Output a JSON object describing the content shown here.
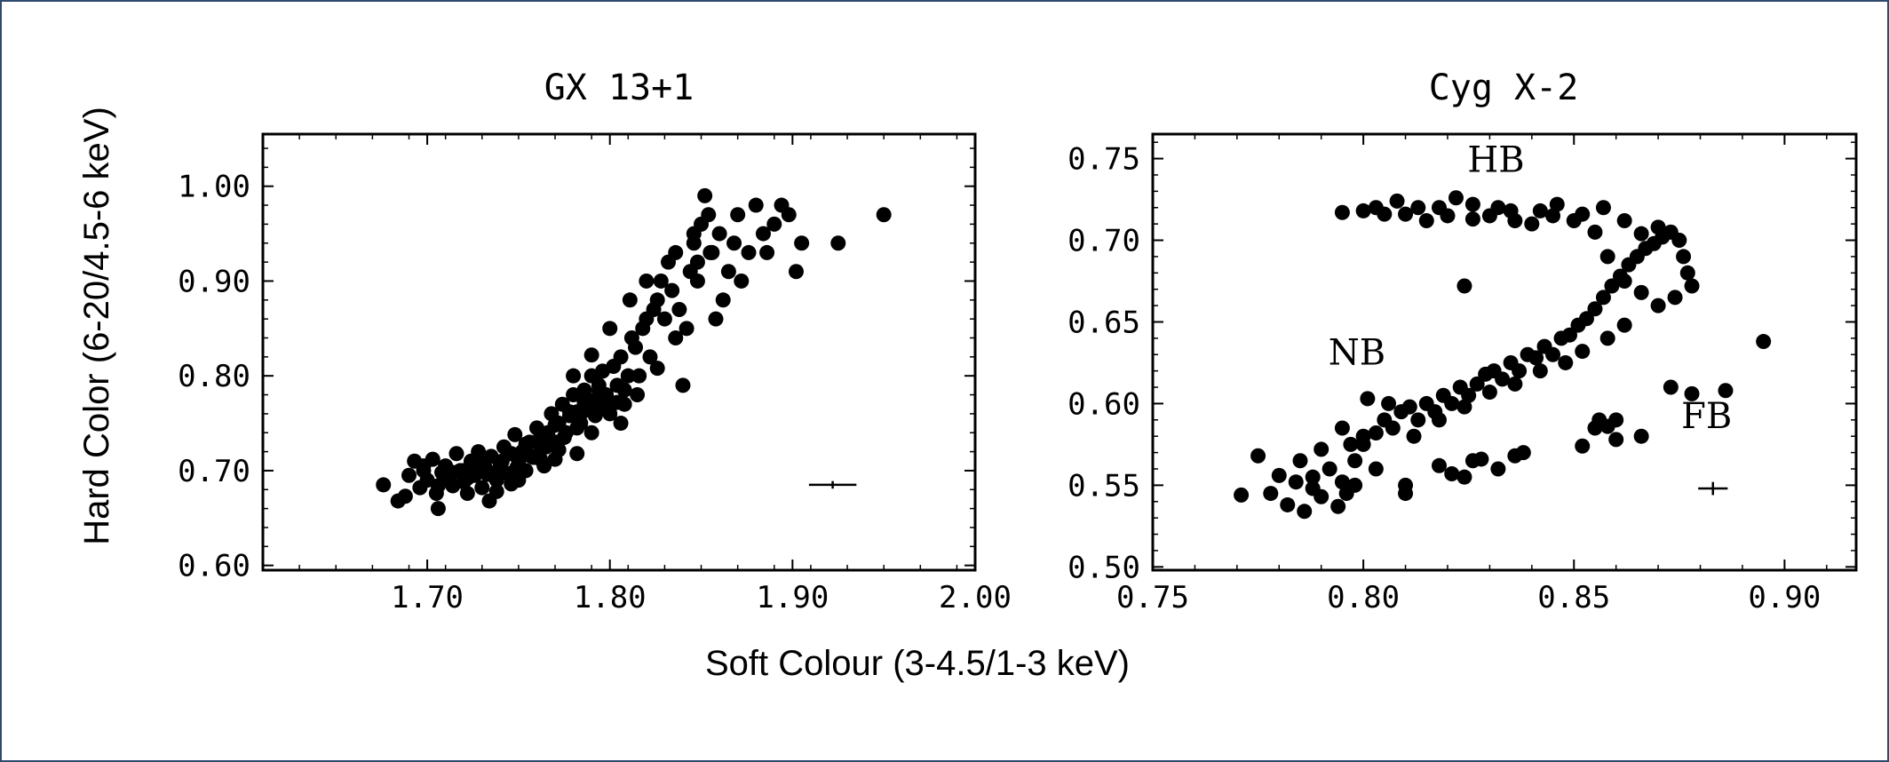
{
  "shared": {
    "xlabel": "Soft Colour (3-4.5/1-3 keV)",
    "ylabel": "Hard Color (6-20/4.5-6 keV)"
  },
  "chart_data": [
    {
      "type": "scatter",
      "title": "GX 13+1",
      "xlim": [
        1.61,
        2.0
      ],
      "ylim": [
        0.595,
        1.055
      ],
      "xticks": [
        1.7,
        1.8,
        1.9,
        2.0
      ],
      "xtick_labels": [
        "1.70",
        "1.80",
        "1.90",
        "2.00"
      ],
      "yticks": [
        0.6,
        0.7,
        0.8,
        0.9,
        1.0
      ],
      "ytick_labels": [
        "0.60",
        "0.70",
        "0.80",
        "0.90",
        "1.00"
      ],
      "error_bar": {
        "x": 1.922,
        "y": 0.685,
        "xerr": 0.013,
        "yerr": 0.004
      },
      "annotations": [],
      "points": [
        [
          1.676,
          0.685
        ],
        [
          1.684,
          0.668
        ],
        [
          1.688,
          0.673
        ],
        [
          1.69,
          0.695
        ],
        [
          1.693,
          0.71
        ],
        [
          1.696,
          0.682
        ],
        [
          1.698,
          0.7
        ],
        [
          1.7,
          0.69
        ],
        [
          1.703,
          0.712
        ],
        [
          1.705,
          0.676
        ],
        [
          1.706,
          0.66
        ],
        [
          1.708,
          0.698
        ],
        [
          1.71,
          0.705
        ],
        [
          1.712,
          0.692
        ],
        [
          1.714,
          0.684
        ],
        [
          1.716,
          0.718
        ],
        [
          1.718,
          0.7
        ],
        [
          1.72,
          0.688
        ],
        [
          1.722,
          0.676
        ],
        [
          1.724,
          0.71
        ],
        [
          1.726,
          0.695
        ],
        [
          1.728,
          0.72
        ],
        [
          1.73,
          0.682
        ],
        [
          1.732,
          0.702
        ],
        [
          1.734,
          0.668
        ],
        [
          1.735,
          0.715
        ],
        [
          1.738,
          0.69
        ],
        [
          1.74,
          0.706
        ],
        [
          1.742,
          0.725
        ],
        [
          1.744,
          0.697
        ],
        [
          1.746,
          0.686
        ],
        [
          1.748,
          0.738
        ],
        [
          1.75,
          0.71
        ],
        [
          1.752,
          0.72
        ],
        [
          1.754,
          0.7
        ],
        [
          1.756,
          0.73
        ],
        [
          1.758,
          0.714
        ],
        [
          1.76,
          0.745
        ],
        [
          1.762,
          0.726
        ],
        [
          1.764,
          0.705
        ],
        [
          1.766,
          0.74
        ],
        [
          1.768,
          0.76
        ],
        [
          1.77,
          0.73
        ],
        [
          1.772,
          0.75
        ],
        [
          1.774,
          0.77
        ],
        [
          1.776,
          0.74
        ],
        [
          1.778,
          0.758
        ],
        [
          1.78,
          0.78
        ],
        [
          1.782,
          0.762
        ],
        [
          1.784,
          0.75
        ],
        [
          1.786,
          0.785
        ],
        [
          1.788,
          0.77
        ],
        [
          1.79,
          0.8
        ],
        [
          1.792,
          0.775
        ],
        [
          1.794,
          0.79
        ],
        [
          1.796,
          0.805
        ],
        [
          1.798,
          0.78
        ],
        [
          1.8,
          0.76
        ],
        [
          1.802,
          0.81
        ],
        [
          1.804,
          0.79
        ],
        [
          1.806,
          0.82
        ],
        [
          1.808,
          0.77
        ],
        [
          1.81,
          0.8
        ],
        [
          1.812,
          0.84
        ],
        [
          1.814,
          0.83
        ],
        [
          1.816,
          0.8
        ],
        [
          1.818,
          0.85
        ],
        [
          1.82,
          0.86
        ],
        [
          1.822,
          0.82
        ],
        [
          1.824,
          0.87
        ],
        [
          1.826,
          0.88
        ],
        [
          1.828,
          0.9
        ],
        [
          1.83,
          0.86
        ],
        [
          1.832,
          0.92
        ],
        [
          1.834,
          0.89
        ],
        [
          1.836,
          0.93
        ],
        [
          1.838,
          0.87
        ],
        [
          1.84,
          0.79
        ],
        [
          1.842,
          0.85
        ],
        [
          1.844,
          0.91
        ],
        [
          1.846,
          0.94
        ],
        [
          1.848,
          0.9
        ],
        [
          1.85,
          0.96
        ],
        [
          1.852,
          0.99
        ],
        [
          1.854,
          0.97
        ],
        [
          1.856,
          0.93
        ],
        [
          1.858,
          0.86
        ],
        [
          1.86,
          0.95
        ],
        [
          1.862,
          0.88
        ],
        [
          1.865,
          0.91
        ],
        [
          1.868,
          0.94
        ],
        [
          1.87,
          0.97
        ],
        [
          1.872,
          0.9
        ],
        [
          1.876,
          0.93
        ],
        [
          1.88,
          0.98
        ],
        [
          1.884,
          0.95
        ],
        [
          1.886,
          0.93
        ],
        [
          1.89,
          0.96
        ],
        [
          1.894,
          0.98
        ],
        [
          1.898,
          0.97
        ],
        [
          1.902,
          0.91
        ],
        [
          1.905,
          0.94
        ],
        [
          1.925,
          0.94
        ],
        [
          1.95,
          0.97
        ],
        [
          1.698,
          0.705
        ],
        [
          1.706,
          0.684
        ],
        [
          1.714,
          0.698
        ],
        [
          1.722,
          0.692
        ],
        [
          1.73,
          0.712
        ],
        [
          1.738,
          0.698
        ],
        [
          1.746,
          0.718
        ],
        [
          1.754,
          0.728
        ],
        [
          1.762,
          0.735
        ],
        [
          1.77,
          0.748
        ],
        [
          1.778,
          0.762
        ],
        [
          1.786,
          0.772
        ],
        [
          1.794,
          0.785
        ],
        [
          1.762,
          0.712
        ],
        [
          1.772,
          0.722
        ],
        [
          1.782,
          0.745
        ],
        [
          1.792,
          0.758
        ],
        [
          1.8,
          0.772
        ],
        [
          1.808,
          0.785
        ],
        [
          1.72,
          0.7
        ],
        [
          1.727,
          0.706
        ],
        [
          1.733,
          0.696
        ],
        [
          1.741,
          0.71
        ],
        [
          1.749,
          0.703
        ],
        [
          1.757,
          0.715
        ],
        [
          1.765,
          0.725
        ],
        [
          1.775,
          0.735
        ],
        [
          1.785,
          0.762
        ],
        [
          1.795,
          0.768
        ],
        [
          1.804,
          0.772
        ],
        [
          1.738,
          0.678
        ],
        [
          1.75,
          0.69
        ],
        [
          1.77,
          0.712
        ],
        [
          1.782,
          0.718
        ],
        [
          1.79,
          0.74
        ],
        [
          1.806,
          0.75
        ],
        [
          1.815,
          0.78
        ],
        [
          1.826,
          0.808
        ],
        [
          1.836,
          0.84
        ],
        [
          1.78,
          0.8
        ],
        [
          1.79,
          0.822
        ],
        [
          1.8,
          0.85
        ],
        [
          1.811,
          0.88
        ],
        [
          1.82,
          0.9
        ],
        [
          1.848,
          0.92
        ],
        [
          1.846,
          0.95
        ],
        [
          1.855,
          0.93
        ]
      ]
    },
    {
      "type": "scatter",
      "title": "Cyg X-2",
      "xlim": [
        0.75,
        0.917
      ],
      "ylim": [
        0.498,
        0.765
      ],
      "xticks": [
        0.75,
        0.8,
        0.85,
        0.9
      ],
      "xtick_labels": [
        "0.75",
        "0.80",
        "0.85",
        "0.90"
      ],
      "yticks": [
        0.5,
        0.55,
        0.6,
        0.65,
        0.7,
        0.75
      ],
      "ytick_labels": [
        "0.50",
        "0.55",
        "0.60",
        "0.65",
        "0.70",
        "0.75"
      ],
      "error_bar": {
        "x": 0.883,
        "y": 0.548,
        "xerr": 0.0035,
        "yerr": 0.004
      },
      "annotations": [
        {
          "text": "HB",
          "x": 0.8315,
          "y": 0.742
        },
        {
          "text": "NB",
          "x": 0.7985,
          "y": 0.624
        },
        {
          "text": "FB",
          "x": 0.8815,
          "y": 0.585
        }
      ],
      "points": [
        [
          0.771,
          0.544
        ],
        [
          0.775,
          0.568
        ],
        [
          0.778,
          0.545
        ],
        [
          0.78,
          0.556
        ],
        [
          0.782,
          0.538
        ],
        [
          0.784,
          0.552
        ],
        [
          0.786,
          0.534
        ],
        [
          0.788,
          0.548
        ],
        [
          0.79,
          0.543
        ],
        [
          0.792,
          0.56
        ],
        [
          0.794,
          0.537
        ],
        [
          0.795,
          0.552
        ],
        [
          0.797,
          0.575
        ],
        [
          0.798,
          0.565
        ],
        [
          0.8,
          0.58
        ],
        [
          0.801,
          0.603
        ],
        [
          0.803,
          0.582
        ],
        [
          0.805,
          0.59
        ],
        [
          0.807,
          0.585
        ],
        [
          0.809,
          0.595
        ],
        [
          0.811,
          0.598
        ],
        [
          0.813,
          0.59
        ],
        [
          0.815,
          0.6
        ],
        [
          0.817,
          0.595
        ],
        [
          0.819,
          0.605
        ],
        [
          0.821,
          0.6
        ],
        [
          0.823,
          0.61
        ],
        [
          0.825,
          0.605
        ],
        [
          0.827,
          0.612
        ],
        [
          0.829,
          0.618
        ],
        [
          0.831,
          0.62
        ],
        [
          0.833,
          0.615
        ],
        [
          0.835,
          0.625
        ],
        [
          0.837,
          0.62
        ],
        [
          0.839,
          0.63
        ],
        [
          0.841,
          0.628
        ],
        [
          0.843,
          0.635
        ],
        [
          0.845,
          0.63
        ],
        [
          0.847,
          0.64
        ],
        [
          0.849,
          0.642
        ],
        [
          0.851,
          0.648
        ],
        [
          0.853,
          0.652
        ],
        [
          0.855,
          0.658
        ],
        [
          0.857,
          0.665
        ],
        [
          0.859,
          0.672
        ],
        [
          0.861,
          0.678
        ],
        [
          0.863,
          0.685
        ],
        [
          0.865,
          0.69
        ],
        [
          0.867,
          0.695
        ],
        [
          0.869,
          0.698
        ],
        [
          0.871,
          0.702
        ],
        [
          0.873,
          0.705
        ],
        [
          0.875,
          0.7
        ],
        [
          0.876,
          0.69
        ],
        [
          0.877,
          0.68
        ],
        [
          0.878,
          0.672
        ],
        [
          0.874,
          0.665
        ],
        [
          0.87,
          0.66
        ],
        [
          0.866,
          0.668
        ],
        [
          0.862,
          0.675
        ],
        [
          0.858,
          0.69
        ],
        [
          0.855,
          0.705
        ],
        [
          0.85,
          0.712
        ],
        [
          0.845,
          0.715
        ],
        [
          0.84,
          0.71
        ],
        [
          0.835,
          0.718
        ],
        [
          0.83,
          0.715
        ],
        [
          0.826,
          0.722
        ],
        [
          0.82,
          0.715
        ],
        [
          0.815,
          0.712
        ],
        [
          0.81,
          0.716
        ],
        [
          0.805,
          0.716
        ],
        [
          0.8,
          0.718
        ],
        [
          0.795,
          0.717
        ],
        [
          0.803,
          0.72
        ],
        [
          0.808,
          0.724
        ],
        [
          0.813,
          0.72
        ],
        [
          0.818,
          0.72
        ],
        [
          0.822,
          0.726
        ],
        [
          0.826,
          0.713
        ],
        [
          0.832,
          0.72
        ],
        [
          0.836,
          0.712
        ],
        [
          0.842,
          0.718
        ],
        [
          0.846,
          0.722
        ],
        [
          0.852,
          0.716
        ],
        [
          0.857,
          0.72
        ],
        [
          0.862,
          0.712
        ],
        [
          0.866,
          0.704
        ],
        [
          0.87,
          0.708
        ],
        [
          0.824,
          0.672
        ],
        [
          0.785,
          0.565
        ],
        [
          0.79,
          0.572
        ],
        [
          0.795,
          0.585
        ],
        [
          0.8,
          0.575
        ],
        [
          0.806,
          0.6
        ],
        [
          0.812,
          0.58
        ],
        [
          0.818,
          0.59
        ],
        [
          0.824,
          0.598
        ],
        [
          0.83,
          0.607
        ],
        [
          0.836,
          0.612
        ],
        [
          0.842,
          0.62
        ],
        [
          0.848,
          0.625
        ],
        [
          0.852,
          0.632
        ],
        [
          0.858,
          0.64
        ],
        [
          0.862,
          0.648
        ],
        [
          0.788,
          0.555
        ],
        [
          0.796,
          0.545
        ],
        [
          0.803,
          0.56
        ],
        [
          0.81,
          0.55
        ],
        [
          0.818,
          0.562
        ],
        [
          0.821,
          0.557
        ],
        [
          0.824,
          0.555
        ],
        [
          0.828,
          0.566
        ],
        [
          0.832,
          0.56
        ],
        [
          0.836,
          0.568
        ],
        [
          0.852,
          0.574
        ],
        [
          0.856,
          0.59
        ],
        [
          0.858,
          0.586
        ],
        [
          0.86,
          0.578
        ],
        [
          0.866,
          0.58
        ],
        [
          0.873,
          0.61
        ],
        [
          0.878,
          0.606
        ],
        [
          0.886,
          0.608
        ],
        [
          0.895,
          0.638
        ],
        [
          0.798,
          0.55
        ],
        [
          0.81,
          0.545
        ],
        [
          0.826,
          0.565
        ],
        [
          0.838,
          0.57
        ],
        [
          0.855,
          0.585
        ],
        [
          0.86,
          0.59
        ]
      ]
    }
  ]
}
